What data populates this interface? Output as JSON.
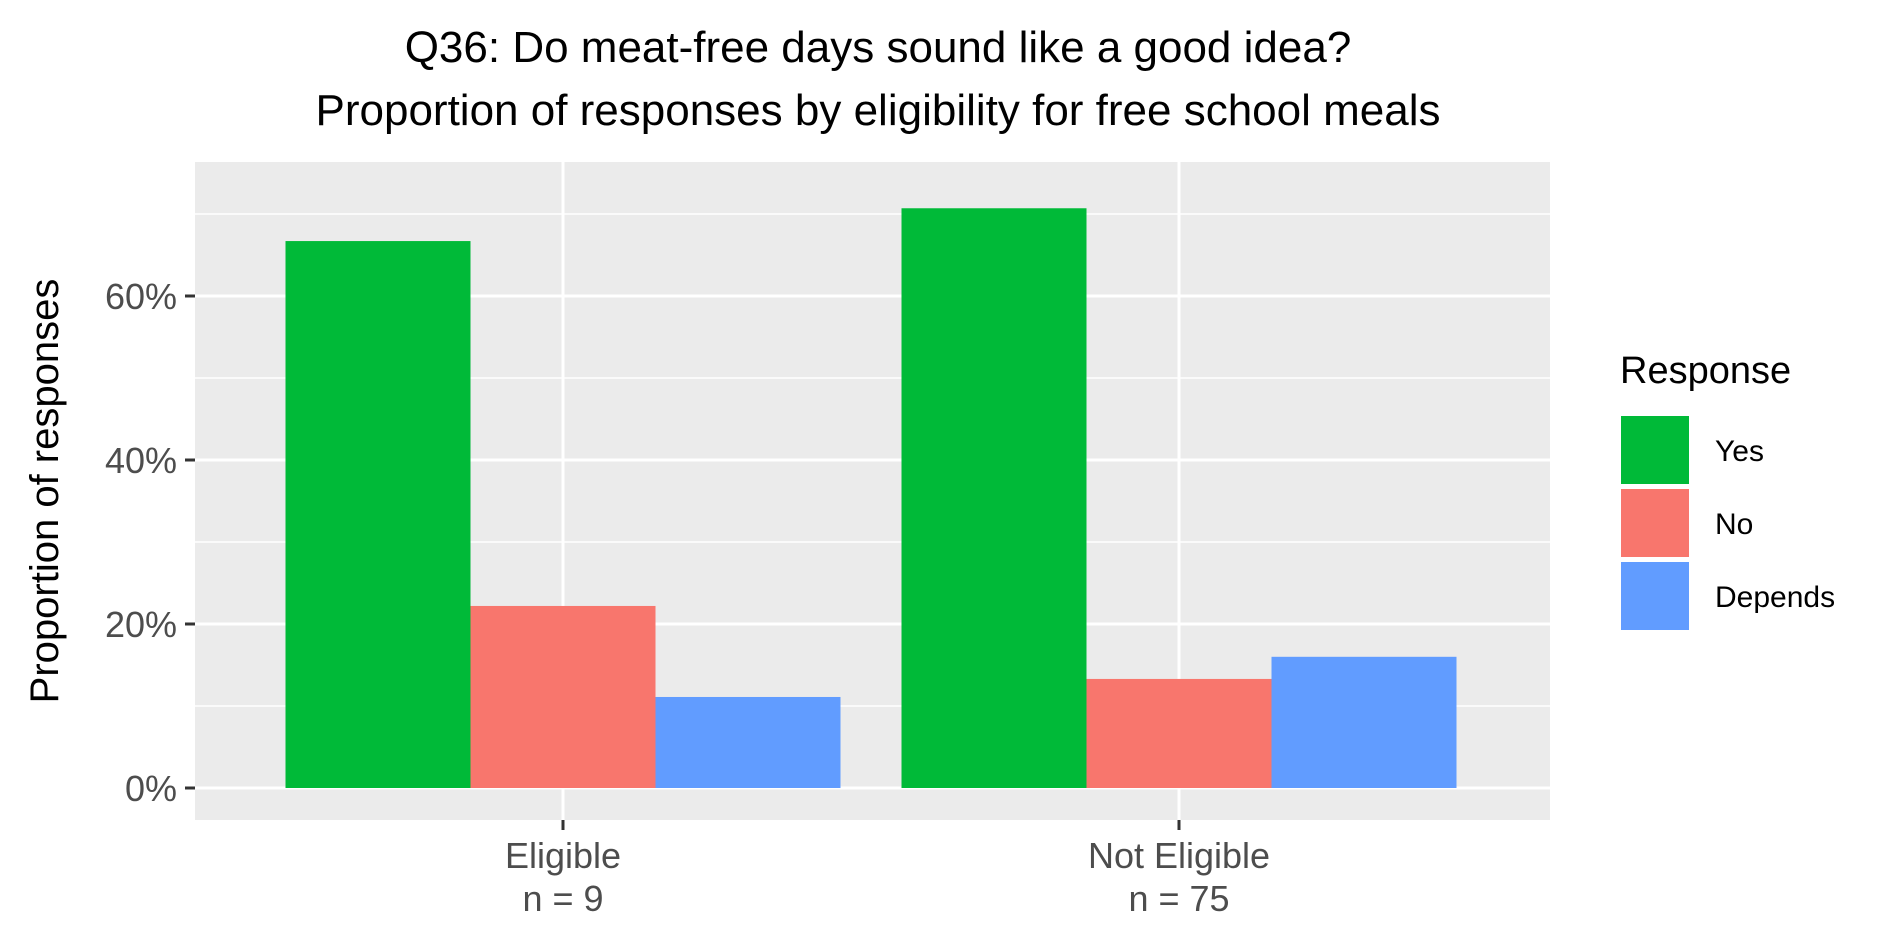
{
  "chart_data": {
    "type": "bar",
    "title": "Q36: Do meat-free days sound like a good idea?",
    "subtitle": "Proportion of responses by eligibility for free school meals",
    "xlabel": "",
    "ylabel": "Proportion of responses",
    "categories": [
      "Eligible\nn = 9",
      "Not Eligible\nn = 75"
    ],
    "series": [
      {
        "name": "Yes",
        "color": "#00BA38",
        "values": [
          66.7,
          70.7
        ]
      },
      {
        "name": "No",
        "color": "#F8766D",
        "values": [
          22.2,
          13.3
        ]
      },
      {
        "name": "Depends",
        "color": "#619CFF",
        "values": [
          11.1,
          16.0
        ]
      }
    ],
    "ylim": [
      0,
      72.5
    ],
    "yticks": [
      0,
      20,
      40,
      60
    ],
    "ytick_labels": [
      "0%",
      "20%",
      "40%",
      "60%"
    ],
    "grid": true,
    "legend": {
      "title": "Response",
      "placement": "right"
    }
  }
}
